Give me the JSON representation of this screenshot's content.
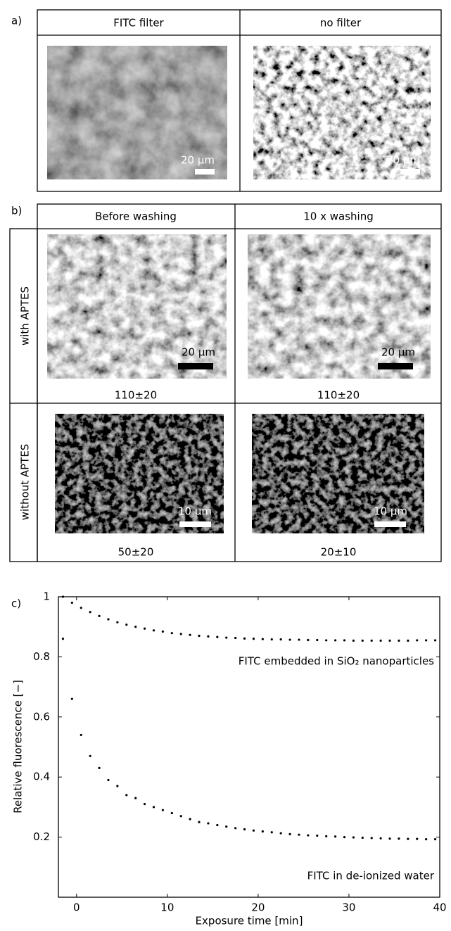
{
  "panel_a": {
    "label": "a)",
    "columns": [
      "FITC filter",
      "no filter"
    ],
    "scale_bars": [
      "20 μm",
      "20 μm"
    ]
  },
  "panel_b": {
    "label": "b)",
    "columns": [
      "Before washing",
      "10 x washing"
    ],
    "rows": [
      {
        "label": "with APTES",
        "scale_bars": [
          "20 μm",
          "20 μm"
        ],
        "values": [
          "110±20",
          "110±20"
        ]
      },
      {
        "label": "without APTES",
        "scale_bars": [
          "10 μm",
          "10 μm"
        ],
        "values": [
          "50±20",
          "20±10"
        ]
      }
    ]
  },
  "chart_data": {
    "type": "scatter",
    "panel_label": "c)",
    "x_label": "Exposure time [min]",
    "y_label": "Relative fluorescence [−]",
    "x": [
      -1.5,
      -0.5,
      0.5,
      1.5,
      2.5,
      3.5,
      4.5,
      5.5,
      6.5,
      7.5,
      8.5,
      9.5,
      10.5,
      11.5,
      12.5,
      13.5,
      14.5,
      15.5,
      16.5,
      17.5,
      18.5,
      19.5,
      20.5,
      21.5,
      22.5,
      23.5,
      24.5,
      25.5,
      26.5,
      27.5,
      28.5,
      29.5,
      30.5,
      31.5,
      32.5,
      33.5,
      34.5,
      35.5,
      36.5,
      37.5,
      38.5,
      39.5
    ],
    "series": [
      {
        "name": "FITC embedded in SiO₂ nanoparticles",
        "color": "#000000",
        "values": [
          1.0,
          0.98,
          0.963,
          0.949,
          0.936,
          0.925,
          0.915,
          0.907,
          0.9,
          0.894,
          0.888,
          0.884,
          0.879,
          0.876,
          0.873,
          0.87,
          0.868,
          0.866,
          0.864,
          0.863,
          0.861,
          0.86,
          0.859,
          0.858,
          0.858,
          0.857,
          0.857,
          0.856,
          0.856,
          0.855,
          0.855,
          0.855,
          0.854,
          0.854,
          0.854,
          0.854,
          0.854,
          0.854,
          0.854,
          0.855,
          0.855,
          0.855
        ]
      },
      {
        "name": "FITC in de-ionized water",
        "color": "#000000",
        "values": [
          0.86,
          0.66,
          0.54,
          0.47,
          0.43,
          0.39,
          0.37,
          0.34,
          0.33,
          0.31,
          0.3,
          0.29,
          0.28,
          0.27,
          0.26,
          0.25,
          0.246,
          0.24,
          0.235,
          0.23,
          0.226,
          0.222,
          0.219,
          0.216,
          0.213,
          0.21,
          0.208,
          0.206,
          0.205,
          0.203,
          0.202,
          0.2,
          0.199,
          0.198,
          0.197,
          0.196,
          0.195,
          0.195,
          0.194,
          0.194,
          0.193,
          0.193
        ]
      }
    ],
    "xlim": [
      -2,
      40
    ],
    "ylim": [
      0,
      1
    ],
    "xticks": [
      0,
      10,
      20,
      30,
      40
    ],
    "yticks": [
      0.2,
      0.4,
      0.6,
      0.8,
      1
    ]
  }
}
